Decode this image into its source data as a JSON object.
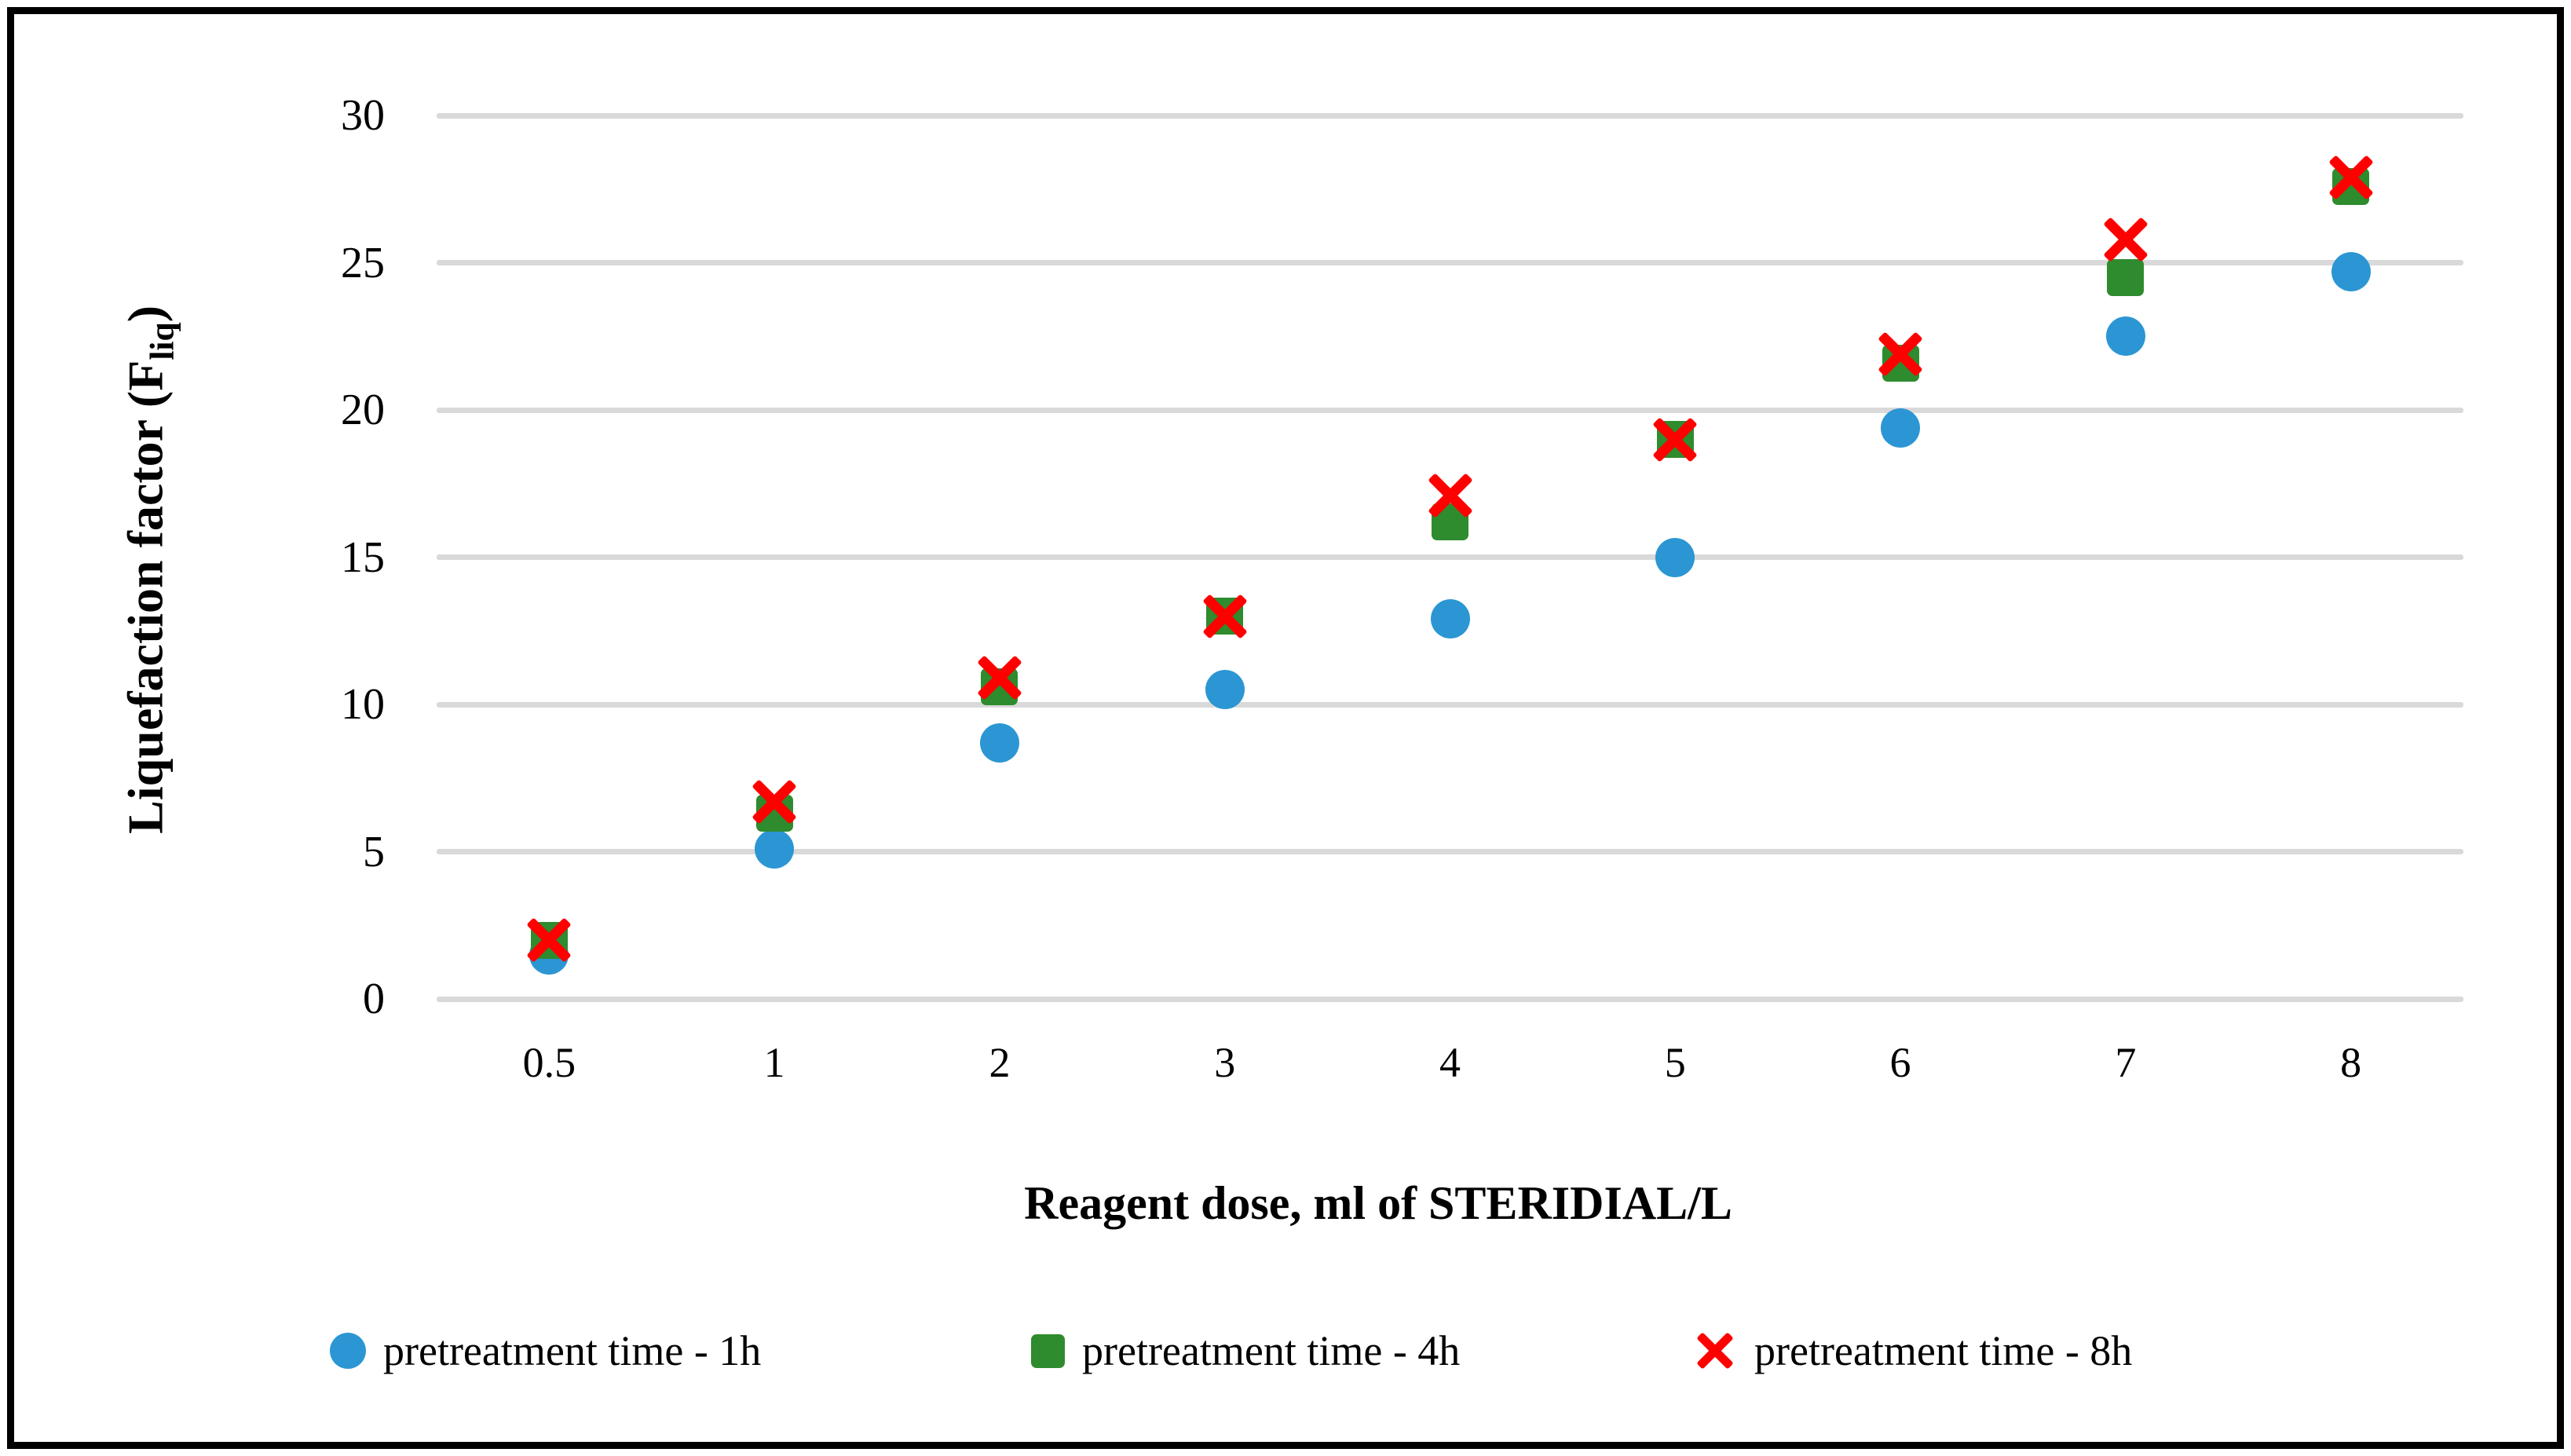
{
  "figure": {
    "background": "#ffffff",
    "border_color": "#000000",
    "text_color": "#000000"
  },
  "chart_data": {
    "type": "scatter",
    "title": "",
    "xlabel": "Reagent dose, ml of STERIDIAL/L",
    "ylabel": "Liquefaction factor (F_liq)",
    "ylabel_rich": {
      "pre": "Liquefaction factor (F",
      "sub": "liq",
      "post": ")"
    },
    "categories": [
      "0.5",
      "1",
      "2",
      "3",
      "4",
      "5",
      "6",
      "7",
      "8"
    ],
    "yticks": [
      0,
      5,
      10,
      15,
      20,
      25,
      30
    ],
    "ylim": [
      0,
      30
    ],
    "grid": true,
    "gridline_color": "#d9d9d9",
    "legend_position": "bottom",
    "series": [
      {
        "name": "pretreatment time - 1h",
        "marker": "circle",
        "color": "#2b96d3",
        "values": [
          1.5,
          5.1,
          8.7,
          10.5,
          12.9,
          15.0,
          19.4,
          22.5,
          24.7
        ]
      },
      {
        "name": "pretreatment time - 4h",
        "marker": "square",
        "color": "#2e8b2e",
        "values": [
          2.0,
          6.3,
          10.6,
          13.0,
          16.2,
          19.0,
          21.6,
          24.5,
          27.6
        ]
      },
      {
        "name": "pretreatment time - 8h",
        "marker": "x",
        "color": "#fe0000",
        "values": [
          2.0,
          6.7,
          10.9,
          13.0,
          17.1,
          19.0,
          21.9,
          25.8,
          27.9
        ]
      }
    ]
  }
}
